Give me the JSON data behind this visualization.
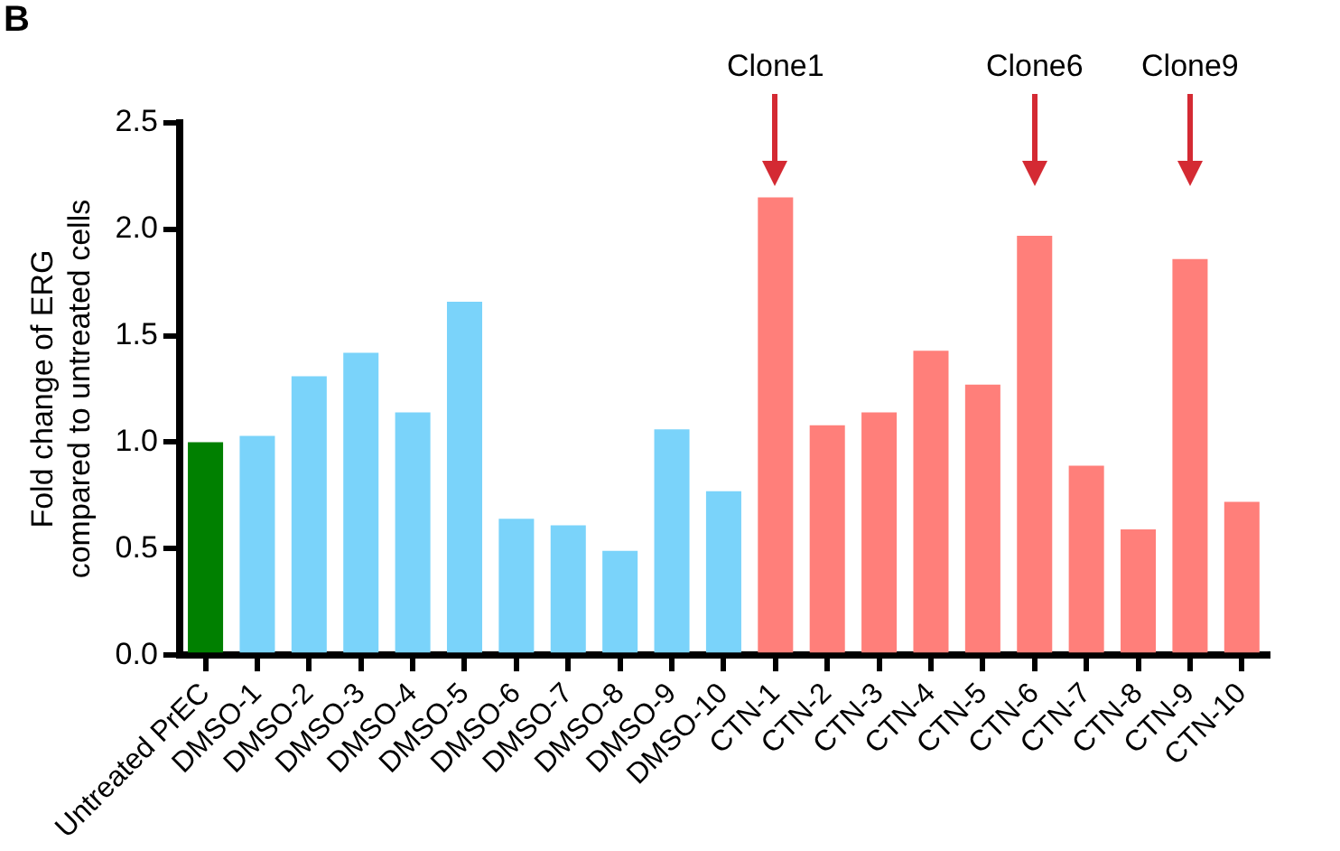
{
  "chart_data": {
    "type": "bar",
    "ylabel": "Fold change of ERG\ncompared to untreated cells",
    "categories": [
      "Untreated PrEC",
      "DMSO-1",
      "DMSO-2",
      "DMSO-3",
      "DMSO-4",
      "DMSO-5",
      "DMSO-6",
      "DMSO-7",
      "DMSO-8",
      "DMSO-9",
      "DMSO-10",
      "CTN-1",
      "CTN-2",
      "CTN-3",
      "CTN-4",
      "CTN-5",
      "CTN-6",
      "CTN-7",
      "CTN-8",
      "CTN-9",
      "CTN-10"
    ],
    "values": [
      1.0,
      1.03,
      1.31,
      1.42,
      1.14,
      1.66,
      0.64,
      0.61,
      0.49,
      1.06,
      0.77,
      2.15,
      1.08,
      1.14,
      1.43,
      1.27,
      1.97,
      0.89,
      0.59,
      1.86,
      0.72
    ],
    "colors": [
      "#008000",
      "#7ad3fa",
      "#7ad3fa",
      "#7ad3fa",
      "#7ad3fa",
      "#7ad3fa",
      "#7ad3fa",
      "#7ad3fa",
      "#7ad3fa",
      "#7ad3fa",
      "#7ad3fa",
      "#ff7f7a",
      "#ff7f7a",
      "#ff7f7a",
      "#ff7f7a",
      "#ff7f7a",
      "#ff7f7a",
      "#ff7f7a",
      "#ff7f7a",
      "#ff7f7a",
      "#ff7f7a"
    ],
    "ylim": [
      0,
      2.5
    ],
    "yticks": [
      {
        "value": 0,
        "label": "0.0"
      },
      {
        "value": 0.5,
        "label": "0.5"
      },
      {
        "value": 1,
        "label": "1.0"
      },
      {
        "value": 1.5,
        "label": "1.5"
      },
      {
        "value": 2,
        "label": "2.0"
      },
      {
        "value": 2.5,
        "label": "2.5"
      }
    ],
    "grid": false,
    "legend": false,
    "annotations": [
      "B",
      "Clone1",
      "Clone6",
      "Clone9"
    ]
  }
}
